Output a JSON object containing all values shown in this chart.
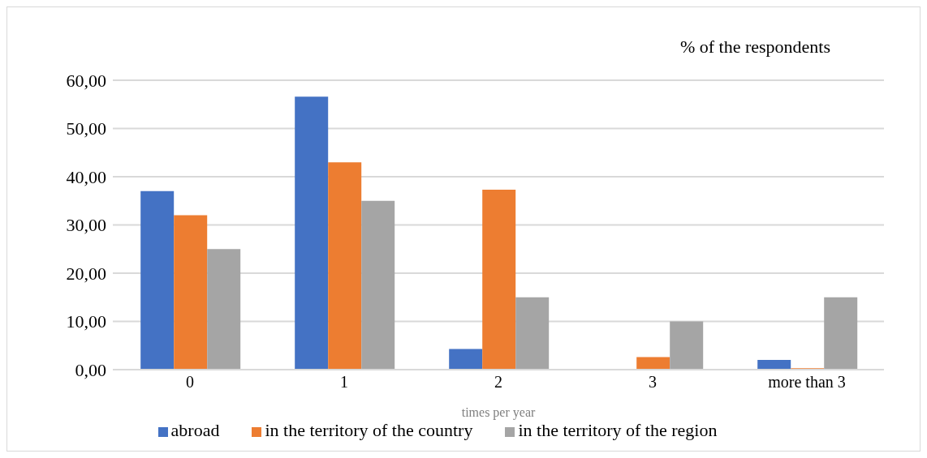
{
  "chart_data": {
    "type": "bar",
    "title": "% of the respondents",
    "xlabel": "times per year",
    "categories": [
      "0",
      "1",
      "2",
      "3",
      "more than 3"
    ],
    "series": [
      {
        "name": "abroad",
        "color": "#4472c4",
        "values": [
          37,
          56.6,
          4.3,
          0,
          2
        ]
      },
      {
        "name": "in the territory of the country",
        "color": "#ed7d31",
        "values": [
          32,
          43,
          37.3,
          2.6,
          0.3
        ]
      },
      {
        "name": "in the territory of the region",
        "color": "#a5a5a5",
        "values": [
          25,
          35,
          15,
          10,
          15
        ]
      }
    ],
    "ylim": [
      0,
      60
    ],
    "yticks": [
      {
        "value": 0,
        "label": "0,00"
      },
      {
        "value": 10,
        "label": "10,00"
      },
      {
        "value": 20,
        "label": "20,00"
      },
      {
        "value": 30,
        "label": "30,00"
      },
      {
        "value": 40,
        "label": "40,00"
      },
      {
        "value": 50,
        "label": "50,00"
      },
      {
        "value": 60,
        "label": "60,00"
      }
    ],
    "grid": "y",
    "legend": "bottom"
  }
}
